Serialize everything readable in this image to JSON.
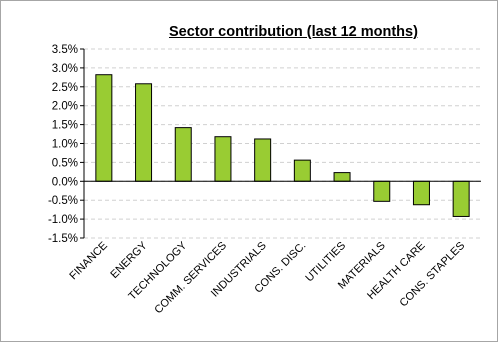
{
  "chart_data": {
    "type": "bar",
    "title": "Sector contribution (last 12 months)",
    "xlabel": "",
    "ylabel": "",
    "categories": [
      "FINANCE",
      "ENERGY",
      "TECHNOLOGY",
      "COMM. SERVICES",
      "INDUSTRIALS",
      "CONS. DISC.",
      "UTILITIES",
      "MATERIALS",
      "HEALTH CARE",
      "CONS. STAPLES"
    ],
    "values": [
      2.82,
      2.58,
      1.42,
      1.18,
      1.12,
      0.56,
      0.23,
      -0.53,
      -0.62,
      -0.93
    ],
    "ylim": [
      -1.5,
      3.5
    ],
    "ytick_step": 0.5,
    "yticks": [
      "3.5%",
      "3.0%",
      "2.5%",
      "2.0%",
      "1.5%",
      "1.0%",
      "0.5%",
      "0.0%",
      "-0.5%",
      "-1.0%",
      "-1.5%"
    ],
    "grid": true,
    "legend": "none",
    "bar_color": "#99cc33",
    "bar_edge_color": "#000000",
    "grid_color": "#d0d0d0"
  }
}
